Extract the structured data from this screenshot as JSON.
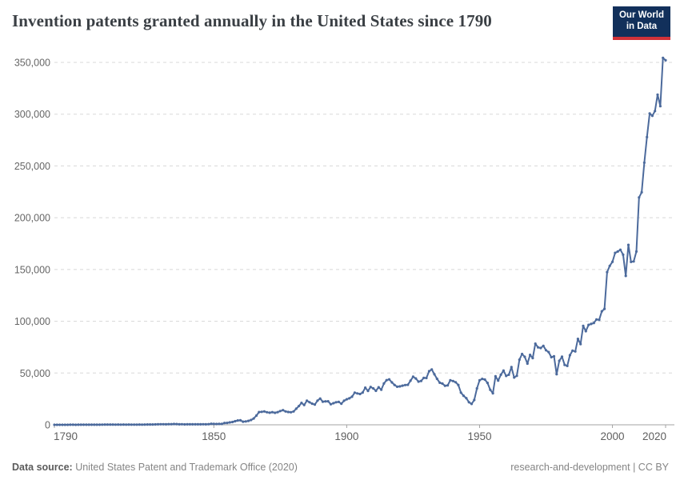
{
  "header": {
    "title": "Invention patents granted annually in the United States since 1790",
    "logo": {
      "line1": "Our World",
      "line2": "in Data"
    }
  },
  "footer": {
    "source_label": "Data source:",
    "source_text": " United States Patent and Trademark Office (2020)",
    "license_text": "research-and-development | CC BY"
  },
  "colors": {
    "line": "#4c6a9c",
    "gridline": "#d8d8d8",
    "axis": "#a3a3a3",
    "logo_navy": "#12305b",
    "logo_red": "#d13239"
  },
  "chart_data": {
    "type": "line",
    "title": "Invention patents granted annually in the United States since 1790",
    "xlabel": "",
    "ylabel": "",
    "xlim": [
      1790,
      2020
    ],
    "ylim": [
      0,
      350000
    ],
    "grid": "horizontal-dashed",
    "legend": "none",
    "markers": true,
    "y_ticks": [
      {
        "value": 0,
        "label": "0"
      },
      {
        "value": 50000,
        "label": "50,000"
      },
      {
        "value": 100000,
        "label": "100,000"
      },
      {
        "value": 150000,
        "label": "150,000"
      },
      {
        "value": 200000,
        "label": "200,000"
      },
      {
        "value": 250000,
        "label": "250,000"
      },
      {
        "value": 300000,
        "label": "300,000"
      },
      {
        "value": 350000,
        "label": "350,000"
      }
    ],
    "x_ticks": [
      {
        "value": 1790,
        "label": "1790"
      },
      {
        "value": 1850,
        "label": "1850"
      },
      {
        "value": 1900,
        "label": "1900"
      },
      {
        "value": 1950,
        "label": "1950"
      },
      {
        "value": 2000,
        "label": "2000"
      },
      {
        "value": 2020,
        "label": "2020"
      }
    ],
    "series": [
      {
        "name": "Invention patents granted (United States)",
        "points": [
          [
            1790,
            3
          ],
          [
            1791,
            33
          ],
          [
            1792,
            11
          ],
          [
            1793,
            20
          ],
          [
            1794,
            22
          ],
          [
            1795,
            12
          ],
          [
            1796,
            44
          ],
          [
            1797,
            51
          ],
          [
            1798,
            28
          ],
          [
            1799,
            44
          ],
          [
            1800,
            41
          ],
          [
            1801,
            44
          ],
          [
            1802,
            65
          ],
          [
            1803,
            97
          ],
          [
            1804,
            84
          ],
          [
            1805,
            57
          ],
          [
            1806,
            63
          ],
          [
            1807,
            99
          ],
          [
            1808,
            158
          ],
          [
            1809,
            203
          ],
          [
            1810,
            223
          ],
          [
            1811,
            215
          ],
          [
            1812,
            238
          ],
          [
            1813,
            181
          ],
          [
            1814,
            210
          ],
          [
            1815,
            173
          ],
          [
            1816,
            206
          ],
          [
            1817,
            174
          ],
          [
            1818,
            222
          ],
          [
            1819,
            156
          ],
          [
            1820,
            155
          ],
          [
            1821,
            168
          ],
          [
            1822,
            200
          ],
          [
            1823,
            173
          ],
          [
            1824,
            228
          ],
          [
            1825,
            304
          ],
          [
            1826,
            323
          ],
          [
            1827,
            331
          ],
          [
            1828,
            368
          ],
          [
            1829,
            447
          ],
          [
            1830,
            544
          ],
          [
            1831,
            573
          ],
          [
            1832,
            474
          ],
          [
            1833,
            586
          ],
          [
            1834,
            630
          ],
          [
            1835,
            752
          ],
          [
            1836,
            702
          ],
          [
            1837,
            426
          ],
          [
            1838,
            514
          ],
          [
            1839,
            404
          ],
          [
            1840,
            458
          ],
          [
            1841,
            490
          ],
          [
            1842,
            488
          ],
          [
            1843,
            493
          ],
          [
            1844,
            478
          ],
          [
            1845,
            473
          ],
          [
            1846,
            566
          ],
          [
            1847,
            495
          ],
          [
            1848,
            583
          ],
          [
            1849,
            984
          ],
          [
            1850,
            883
          ],
          [
            1851,
            752
          ],
          [
            1852,
            885
          ],
          [
            1853,
            844
          ],
          [
            1854,
            1755
          ],
          [
            1855,
            1881
          ],
          [
            1856,
            2302
          ],
          [
            1857,
            2674
          ],
          [
            1858,
            3455
          ],
          [
            1859,
            4160
          ],
          [
            1860,
            4357
          ],
          [
            1861,
            3020
          ],
          [
            1862,
            3214
          ],
          [
            1863,
            3773
          ],
          [
            1864,
            4630
          ],
          [
            1865,
            6088
          ],
          [
            1866,
            8863
          ],
          [
            1867,
            12277
          ],
          [
            1868,
            12526
          ],
          [
            1869,
            12931
          ],
          [
            1870,
            12137
          ],
          [
            1871,
            11659
          ],
          [
            1872,
            12180
          ],
          [
            1873,
            11616
          ],
          [
            1874,
            12230
          ],
          [
            1875,
            13291
          ],
          [
            1876,
            14169
          ],
          [
            1877,
            12920
          ],
          [
            1878,
            12345
          ],
          [
            1879,
            12125
          ],
          [
            1880,
            12903
          ],
          [
            1881,
            15500
          ],
          [
            1882,
            18091
          ],
          [
            1883,
            21162
          ],
          [
            1884,
            19118
          ],
          [
            1885,
            23285
          ],
          [
            1886,
            21767
          ],
          [
            1887,
            20403
          ],
          [
            1888,
            19551
          ],
          [
            1889,
            23324
          ],
          [
            1890,
            25313
          ],
          [
            1891,
            22312
          ],
          [
            1892,
            22647
          ],
          [
            1893,
            22750
          ],
          [
            1894,
            19855
          ],
          [
            1895,
            20856
          ],
          [
            1896,
            21822
          ],
          [
            1897,
            22067
          ],
          [
            1898,
            20377
          ],
          [
            1899,
            23278
          ],
          [
            1900,
            24644
          ],
          [
            1901,
            25546
          ],
          [
            1902,
            27119
          ],
          [
            1903,
            31029
          ],
          [
            1904,
            30258
          ],
          [
            1905,
            29775
          ],
          [
            1906,
            31170
          ],
          [
            1907,
            35859
          ],
          [
            1908,
            32735
          ],
          [
            1909,
            36561
          ],
          [
            1910,
            35141
          ],
          [
            1911,
            32856
          ],
          [
            1912,
            36198
          ],
          [
            1913,
            33917
          ],
          [
            1914,
            39892
          ],
          [
            1915,
            43118
          ],
          [
            1916,
            43892
          ],
          [
            1917,
            40935
          ],
          [
            1918,
            38452
          ],
          [
            1919,
            36797
          ],
          [
            1920,
            37060
          ],
          [
            1921,
            37798
          ],
          [
            1922,
            38369
          ],
          [
            1923,
            38616
          ],
          [
            1924,
            42574
          ],
          [
            1925,
            46432
          ],
          [
            1926,
            44733
          ],
          [
            1927,
            41717
          ],
          [
            1928,
            42357
          ],
          [
            1929,
            45267
          ],
          [
            1930,
            45226
          ],
          [
            1931,
            51756
          ],
          [
            1932,
            53458
          ],
          [
            1933,
            48774
          ],
          [
            1934,
            44420
          ],
          [
            1935,
            40618
          ],
          [
            1936,
            39782
          ],
          [
            1937,
            37683
          ],
          [
            1938,
            38061
          ],
          [
            1939,
            43073
          ],
          [
            1940,
            42238
          ],
          [
            1941,
            41109
          ],
          [
            1942,
            38449
          ],
          [
            1943,
            31054
          ],
          [
            1944,
            28053
          ],
          [
            1945,
            25695
          ],
          [
            1946,
            21803
          ],
          [
            1947,
            20139
          ],
          [
            1948,
            23963
          ],
          [
            1949,
            35131
          ],
          [
            1950,
            43040
          ],
          [
            1951,
            44326
          ],
          [
            1952,
            43616
          ],
          [
            1953,
            40468
          ],
          [
            1954,
            33809
          ],
          [
            1955,
            30432
          ],
          [
            1956,
            46817
          ],
          [
            1957,
            42744
          ],
          [
            1958,
            48330
          ],
          [
            1959,
            52408
          ],
          [
            1960,
            47170
          ],
          [
            1961,
            48368
          ],
          [
            1962,
            55691
          ],
          [
            1963,
            45679
          ],
          [
            1964,
            47376
          ],
          [
            1965,
            62857
          ],
          [
            1966,
            68406
          ],
          [
            1967,
            65652
          ],
          [
            1968,
            59104
          ],
          [
            1969,
            67559
          ],
          [
            1970,
            64429
          ],
          [
            1971,
            78317
          ],
          [
            1972,
            74810
          ],
          [
            1973,
            74143
          ],
          [
            1974,
            76278
          ],
          [
            1975,
            71994
          ],
          [
            1976,
            70226
          ],
          [
            1977,
            65269
          ],
          [
            1978,
            66102
          ],
          [
            1979,
            48854
          ],
          [
            1980,
            61819
          ],
          [
            1981,
            65771
          ],
          [
            1982,
            57888
          ],
          [
            1983,
            56860
          ],
          [
            1984,
            67200
          ],
          [
            1985,
            71661
          ],
          [
            1986,
            70860
          ],
          [
            1987,
            82952
          ],
          [
            1988,
            77924
          ],
          [
            1989,
            95537
          ],
          [
            1990,
            90364
          ],
          [
            1991,
            96511
          ],
          [
            1992,
            97444
          ],
          [
            1993,
            98342
          ],
          [
            1994,
            101676
          ],
          [
            1995,
            101419
          ],
          [
            1996,
            109645
          ],
          [
            1997,
            111984
          ],
          [
            1998,
            147517
          ],
          [
            1999,
            153485
          ],
          [
            2000,
            157494
          ],
          [
            2001,
            166035
          ],
          [
            2002,
            167331
          ],
          [
            2003,
            169023
          ],
          [
            2004,
            164290
          ],
          [
            2005,
            143806
          ],
          [
            2006,
            173772
          ],
          [
            2007,
            157282
          ],
          [
            2008,
            157772
          ],
          [
            2009,
            167349
          ],
          [
            2010,
            219614
          ],
          [
            2011,
            224505
          ],
          [
            2012,
            253155
          ],
          [
            2013,
            277835
          ],
          [
            2014,
            300678
          ],
          [
            2015,
            298407
          ],
          [
            2016,
            303049
          ],
          [
            2017,
            318829
          ],
          [
            2018,
            307759
          ],
          [
            2019,
            354430
          ],
          [
            2020,
            351993
          ]
        ]
      }
    ]
  }
}
